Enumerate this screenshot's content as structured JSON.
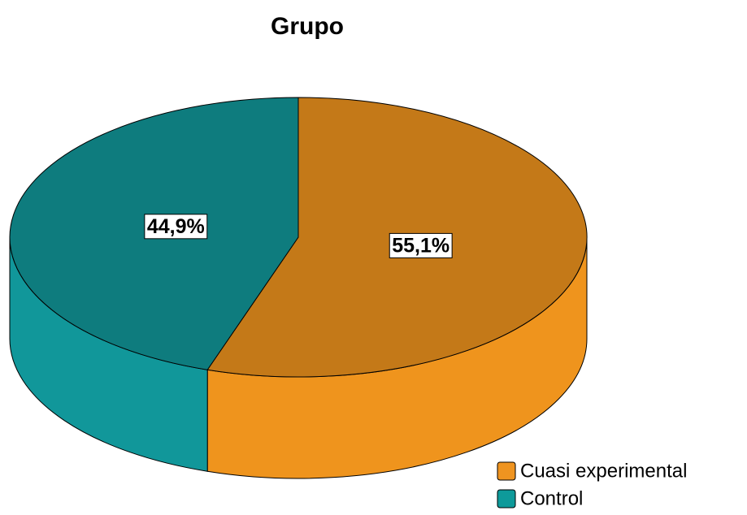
{
  "chart_data": {
    "type": "pie",
    "title": "Grupo",
    "categories": [
      "Cuasi experimental",
      "Control"
    ],
    "values": [
      55.1,
      44.9
    ],
    "value_labels": [
      "55,1%",
      "44,9%"
    ],
    "colors": [
      "#c47918",
      "#0e7c7e"
    ],
    "legend": "bottom-right"
  }
}
